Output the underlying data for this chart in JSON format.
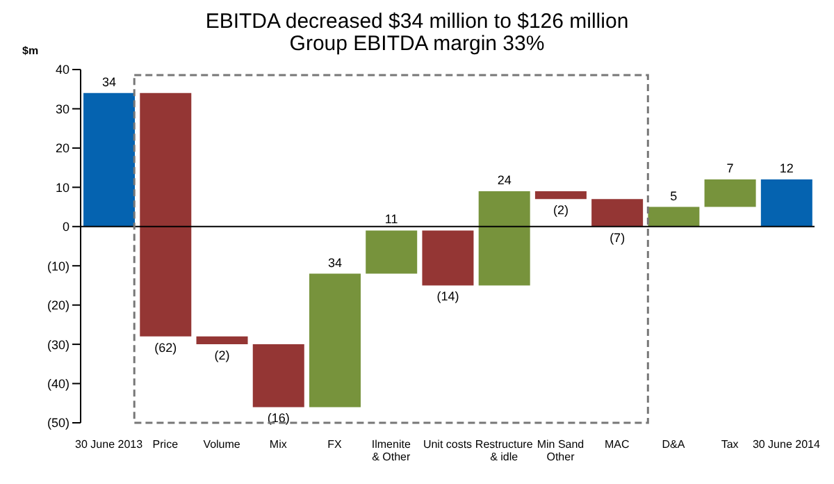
{
  "chart_data": {
    "type": "bar",
    "title": "EBITDA decreased $34 million to $126 million\nGroup EBITDA margin 33%",
    "ylabel": "$m",
    "categories": [
      "30 June 2013",
      "Price",
      "Volume",
      "Mix",
      "FX",
      "Ilmenite\n& Other",
      "Unit costs",
      "Restructure\n& idle",
      "Min Sand\nOther",
      "MAC",
      "D&A",
      "Tax",
      "30 June 2014"
    ],
    "values": [
      34,
      -62,
      -2,
      -16,
      34,
      11,
      -14,
      24,
      -2,
      -7,
      5,
      7,
      12
    ],
    "base": [
      0,
      34,
      -28,
      -30,
      -46,
      -12,
      -1,
      -15,
      9,
      7,
      0,
      5,
      0
    ],
    "colors": [
      "#0563b0",
      "#943634",
      "#943634",
      "#943634",
      "#77933c",
      "#77933c",
      "#943634",
      "#77933c",
      "#943634",
      "#943634",
      "#77933c",
      "#77933c",
      "#0563b0"
    ],
    "value_labels": [
      "34",
      "(62)",
      "(2)",
      "(16)",
      "34",
      "11",
      "(14)",
      "24",
      "(2)",
      "(7)",
      "5",
      "7",
      "12"
    ],
    "ylim": [
      -50,
      40
    ],
    "yticks": [
      40,
      30,
      20,
      10,
      0,
      {
        "value": -10,
        "label": "(10)"
      },
      {
        "value": -20,
        "label": "(20)"
      },
      {
        "value": -30,
        "label": "(30)"
      },
      {
        "value": -40,
        "label": "(40)"
      },
      {
        "value": -50,
        "label": "(50)"
      }
    ],
    "ref_lines": [
      {
        "axis": "y",
        "value": 0,
        "color": "#000000"
      }
    ]
  }
}
